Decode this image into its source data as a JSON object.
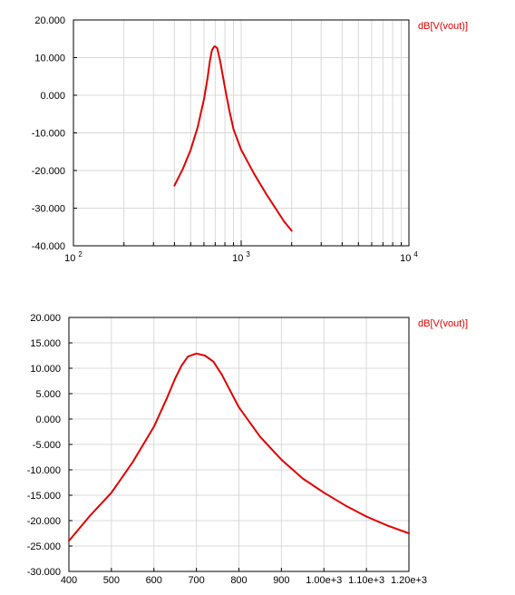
{
  "colors": {
    "trace": "#e00000",
    "grid": "#d9d9d9",
    "axis": "#000000"
  },
  "chart_data": [
    {
      "type": "line",
      "x_scale": "log",
      "xlim": [
        100,
        10000
      ],
      "ylim": [
        -40,
        20
      ],
      "grid": true,
      "legend_position": "top-right",
      "x_ticks": [
        {
          "value": 100,
          "base": "10",
          "exp": "2"
        },
        {
          "value": 1000,
          "base": "10",
          "exp": "3"
        },
        {
          "value": 10000,
          "base": "10",
          "exp": "4"
        }
      ],
      "y_ticks": [
        {
          "value": 20,
          "label": "20.000"
        },
        {
          "value": 10,
          "label": "10.000"
        },
        {
          "value": 0,
          "label": "0.000"
        },
        {
          "value": -10,
          "label": "-10.000"
        },
        {
          "value": -20,
          "label": "-20.000"
        },
        {
          "value": -30,
          "label": "-30.000"
        },
        {
          "value": -40,
          "label": "-40.000"
        }
      ],
      "series": [
        {
          "name": "dB[V(vout)]",
          "x": [
            400,
            450,
            500,
            550,
            600,
            630,
            650,
            670,
            690,
            700,
            720,
            750,
            800,
            850,
            900,
            1000,
            1200,
            1400,
            1600,
            1800,
            2000
          ],
          "y": [
            -24,
            -19.5,
            -14.5,
            -8.5,
            -1,
            4.5,
            9,
            12,
            12.9,
            13,
            12.5,
            9,
            2,
            -4,
            -9,
            -14.5,
            -21,
            -26,
            -30,
            -33.5,
            -36
          ]
        }
      ]
    },
    {
      "type": "line",
      "x_scale": "linear",
      "xlim": [
        400,
        1200
      ],
      "ylim": [
        -30,
        20
      ],
      "grid": true,
      "legend_position": "top-right",
      "x_ticks": [
        {
          "value": 400,
          "label": "400"
        },
        {
          "value": 500,
          "label": "500"
        },
        {
          "value": 600,
          "label": "600"
        },
        {
          "value": 700,
          "label": "700"
        },
        {
          "value": 800,
          "label": "800"
        },
        {
          "value": 900,
          "label": "900"
        },
        {
          "value": 1000,
          "label": "1.00e+3"
        },
        {
          "value": 1100,
          "label": "1.10e+3"
        },
        {
          "value": 1200,
          "label": "1.20e+3"
        }
      ],
      "y_ticks": [
        {
          "value": 20,
          "label": "20.000"
        },
        {
          "value": 15,
          "label": "15.000"
        },
        {
          "value": 10,
          "label": "10.000"
        },
        {
          "value": 5,
          "label": "5.000"
        },
        {
          "value": 0,
          "label": "0.000"
        },
        {
          "value": -5,
          "label": "-5.000"
        },
        {
          "value": -10,
          "label": "-10.000"
        },
        {
          "value": -15,
          "label": "-15.000"
        },
        {
          "value": -20,
          "label": "-20.000"
        },
        {
          "value": -25,
          "label": "-25.000"
        },
        {
          "value": -30,
          "label": "-30.000"
        }
      ],
      "series": [
        {
          "name": "dB[V(vout)]",
          "x": [
            400,
            450,
            500,
            550,
            600,
            630,
            650,
            665,
            680,
            700,
            720,
            740,
            760,
            780,
            800,
            850,
            900,
            950,
            1000,
            1050,
            1100,
            1150,
            1200
          ],
          "y": [
            -24,
            -19,
            -14.5,
            -8.5,
            -1.5,
            4,
            8,
            10.5,
            12.3,
            12.9,
            12.5,
            11.3,
            8.7,
            5.5,
            2.3,
            -3.5,
            -8,
            -11.7,
            -14.5,
            -17,
            -19.2,
            -21,
            -22.5
          ]
        }
      ]
    }
  ]
}
